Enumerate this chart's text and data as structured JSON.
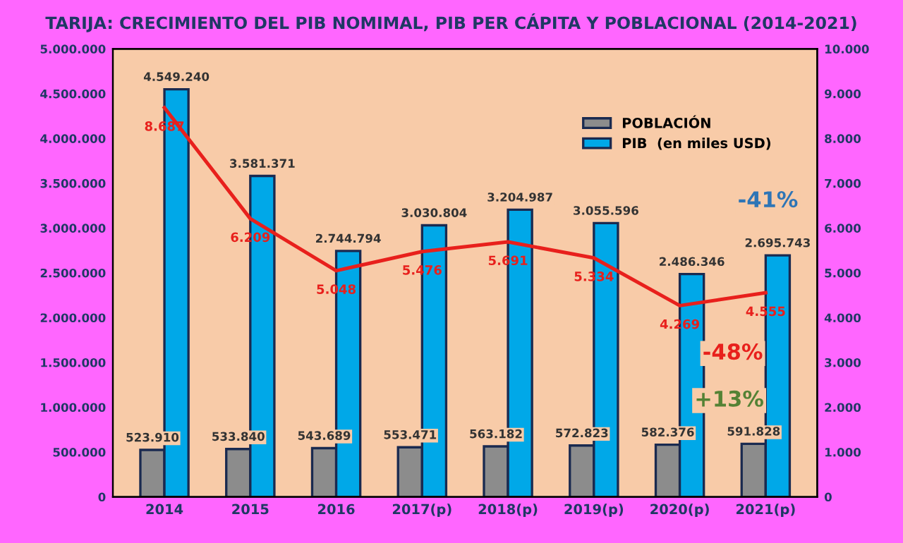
{
  "chart_data": {
    "type": "bar",
    "title": "TARIJA: CRECIMIENTO DEL PIB NOMIMAL, PIB PER CÁPITA Y POBLACIONAL (2014-2021)",
    "categories": [
      "2014",
      "2015",
      "2016",
      "2017(p)",
      "2018(p)",
      "2019(p)",
      "2020(p)",
      "2021(p)"
    ],
    "series": [
      {
        "name": "POBLACIÓN",
        "color": "#8c8c8c",
        "values": [
          523910,
          533840,
          543689,
          553471,
          563182,
          572823,
          582376,
          591828
        ],
        "value_labels": [
          "523.910",
          "533.840",
          "543.689",
          "553.471",
          "563.182",
          "572.823",
          "582.376",
          "591.828"
        ]
      },
      {
        "name": "PIB  (en miles USD)",
        "color": "#00a8e8",
        "values": [
          4549240,
          3581371,
          2744794,
          3030804,
          3204987,
          3055596,
          2486346,
          2695743
        ],
        "value_labels": [
          "4.549.240",
          "3.581.371",
          "2.744.794",
          "3.030.804",
          "3.204.987",
          "3.055.596",
          "2.486.346",
          "2.695.743"
        ]
      },
      {
        "type": "line",
        "axis": "y2",
        "color": "#e8201c",
        "values": [
          8687,
          6209,
          5048,
          5476,
          5691,
          5334,
          4269,
          4555
        ],
        "value_labels": [
          "8.687",
          "6.209",
          "5.048",
          "5.476",
          "5.691",
          "5.334",
          "4.269",
          "4.555"
        ]
      }
    ],
    "ylim": [
      0,
      5000000
    ],
    "yticks": [
      0,
      {
        "value": 500000,
        "label": "500.000"
      },
      {
        "value": 1000000,
        "label": "1.000.000"
      },
      {
        "value": 1500000,
        "label": "1.500.000"
      },
      {
        "value": 2000000,
        "label": "2.000.000"
      },
      {
        "value": 2500000,
        "label": "2.500.000"
      },
      {
        "value": 3000000,
        "label": "3.000.000"
      },
      {
        "value": 3500000,
        "label": "3.500.000"
      },
      {
        "value": 4000000,
        "label": "4.000.000"
      },
      {
        "value": 4500000,
        "label": "4.500.000"
      },
      {
        "value": 5000000,
        "label": "5.000.000"
      }
    ],
    "y2lim": [
      0,
      10000
    ],
    "y2ticks": [
      0,
      {
        "value": 1000,
        "label": "1.000"
      },
      {
        "value": 2000,
        "label": "2.000"
      },
      {
        "value": 3000,
        "label": "3.000"
      },
      {
        "value": 4000,
        "label": "4.000"
      },
      {
        "value": 5000,
        "label": "5.000"
      },
      {
        "value": 6000,
        "label": "6.000"
      },
      {
        "value": 7000,
        "label": "7.000"
      },
      {
        "value": 8000,
        "label": "8.000"
      },
      {
        "value": 9000,
        "label": "9.000"
      },
      {
        "value": 10000,
        "label": "10.000"
      }
    ],
    "annotations": [
      "-41%",
      "-48%",
      "+13%"
    ],
    "legend": "top right",
    "grid": false
  }
}
